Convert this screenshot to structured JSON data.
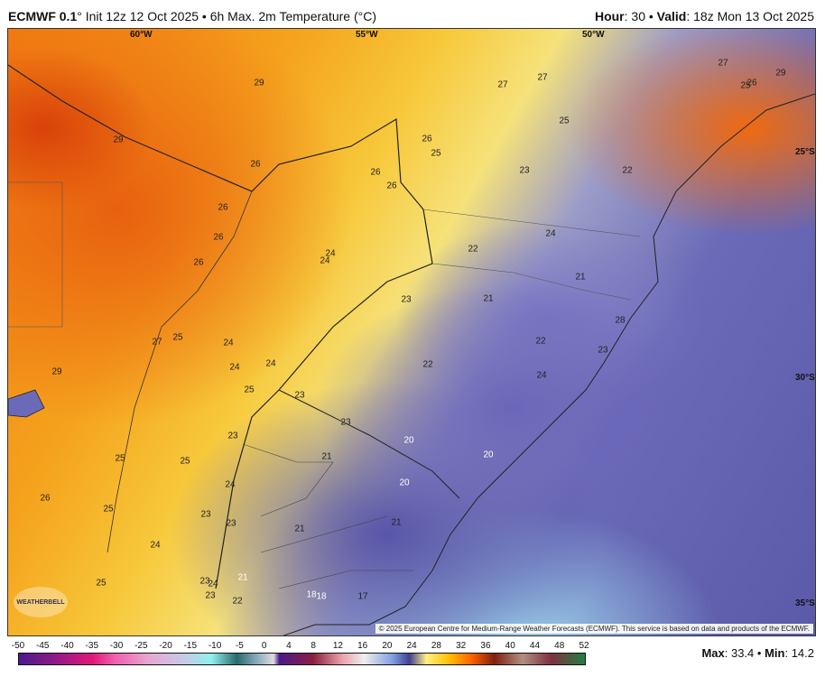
{
  "header": {
    "model": "ECMWF 0.1",
    "model_suffix": "° Init 12z 12 Oct 2025 • 6h Max. 2m Temperature (°C)",
    "hour_label": "Hour",
    "hour": ": 30 • ",
    "valid_label": "Valid",
    "valid": ": 18z Mon 13 Oct 2025"
  },
  "map": {
    "lon_labels": [
      "60°W",
      "55°W",
      "50°W"
    ],
    "lat_labels": [
      "25°S",
      "30°S",
      "35°S"
    ],
    "temperature_labels": [
      "29",
      "27",
      "27",
      "27",
      "26",
      "29",
      "25",
      "29",
      "26",
      "25",
      "25",
      "26",
      "26",
      "26",
      "23",
      "22",
      "26",
      "26",
      "24",
      "22",
      "24",
      "24",
      "26",
      "21",
      "23",
      "21",
      "28",
      "27",
      "25",
      "24",
      "22",
      "23",
      "24",
      "24",
      "22",
      "29",
      "24",
      "25",
      "23",
      "23",
      "20",
      "23",
      "21",
      "20",
      "25",
      "25",
      "24",
      "20",
      "26",
      "25",
      "23",
      "23",
      "21",
      "21",
      "24",
      "25",
      "23",
      "24",
      "21",
      "23",
      "22",
      "18",
      "18",
      "17"
    ],
    "copyright": "© 2025 European Centre for Medium-Range Weather Forecasts (ECMWF). This service is based on data and products of the ECMWF.",
    "logo": "WEATHERBELL"
  },
  "colorbar": {
    "ticks": [
      "-50",
      "-45",
      "-40",
      "-35",
      "-30",
      "-25",
      "-20",
      "-15",
      "-10",
      "-5",
      "0",
      "4",
      "8",
      "12",
      "16",
      "20",
      "24",
      "28",
      "32",
      "36",
      "40",
      "44",
      "48",
      "52"
    ],
    "unit": "°C"
  },
  "stats": {
    "max_label": "Max",
    "max": "33.4",
    "min_label": "Min",
    "min": "14.2"
  }
}
